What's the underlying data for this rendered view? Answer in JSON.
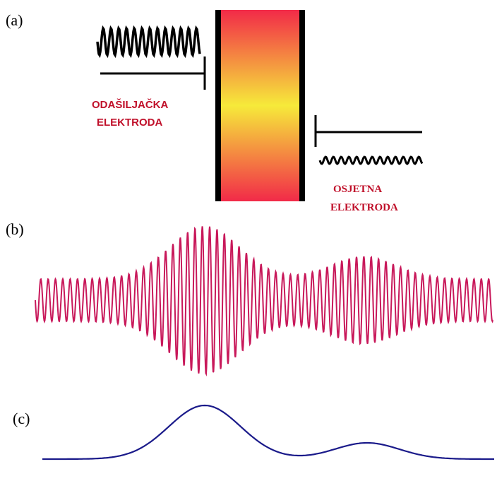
{
  "panels": [
    {
      "label": "(a)",
      "transmit_electrode": [
        "ODAŠILJAČKA",
        "ELEKTRODA"
      ],
      "sense_electrode": [
        "OSJETNA",
        "ELEKTRODA"
      ]
    },
    {
      "label": "(b)"
    },
    {
      "label": "(c)"
    }
  ]
}
